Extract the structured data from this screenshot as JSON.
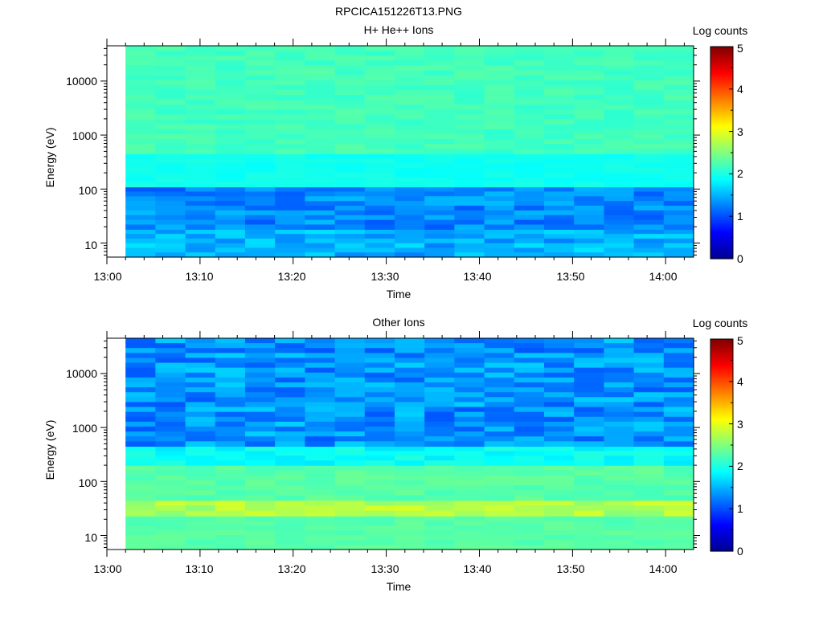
{
  "figure_title": "RPCICA151226T13.PNG",
  "colormap": [
    "#00008f",
    "#0000ff",
    "#007fff",
    "#00ffff",
    "#7fff7f",
    "#ffff00",
    "#ff7f00",
    "#ff0000",
    "#800000"
  ],
  "chart_data": [
    {
      "type": "heatmap",
      "title": "H+ He++ Ions",
      "xlabel": "Time",
      "ylabel": "Energy (eV)",
      "colorbar_label": "Log counts",
      "colorbar_range": [
        0,
        5
      ],
      "colorbar_ticks": [
        "0",
        "1",
        "2",
        "3",
        "4",
        "5"
      ],
      "x_range": [
        "13:00",
        "14:03"
      ],
      "x_ticks": [
        "13:00",
        "13:10",
        "13:20",
        "13:30",
        "13:40",
        "13:50",
        "14:00"
      ],
      "y_scale": "log",
      "y_range": [
        5.5,
        45000
      ],
      "y_ticks": [
        "10",
        "100",
        "1000",
        "10000"
      ],
      "data_time_range": [
        "13:02",
        "14:03"
      ],
      "time_bins": 19,
      "bands": [
        {
          "energy_range_eV": [
            5.5,
            18
          ],
          "log_counts": 1.5,
          "variation": 0.25
        },
        {
          "energy_range_eV": [
            18,
            110
          ],
          "log_counts": 1.3,
          "variation": 0.25
        },
        {
          "energy_range_eV": [
            110,
            450
          ],
          "log_counts": 1.95,
          "variation": 0.06
        },
        {
          "energy_range_eV": [
            450,
            45000
          ],
          "log_counts": 2.2,
          "variation": 0.1
        }
      ]
    },
    {
      "type": "heatmap",
      "title": "Other Ions",
      "xlabel": "Time",
      "ylabel": "Energy (eV)",
      "colorbar_label": "Log counts",
      "colorbar_range": [
        0,
        5
      ],
      "colorbar_ticks": [
        "0",
        "1",
        "2",
        "3",
        "4",
        "5"
      ],
      "x_range": [
        "13:00",
        "14:03"
      ],
      "x_ticks": [
        "13:00",
        "13:10",
        "13:20",
        "13:30",
        "13:40",
        "13:50",
        "14:00"
      ],
      "y_scale": "log",
      "y_range": [
        5.5,
        45000
      ],
      "y_ticks": [
        "10",
        "100",
        "1000",
        "10000"
      ],
      "data_time_range": [
        "13:02",
        "14:03"
      ],
      "time_bins": 19,
      "bands": [
        {
          "energy_range_eV": [
            5.5,
            23
          ],
          "log_counts": 2.3,
          "variation": 0.08
        },
        {
          "energy_range_eV": [
            23,
            45
          ],
          "log_counts": 2.75,
          "variation": 0.2
        },
        {
          "energy_range_eV": [
            45,
            200
          ],
          "log_counts": 2.3,
          "variation": 0.1
        },
        {
          "energy_range_eV": [
            200,
            450
          ],
          "log_counts": 1.9,
          "variation": 0.15
        },
        {
          "energy_range_eV": [
            450,
            45000
          ],
          "log_counts": 1.35,
          "variation": 0.3
        }
      ]
    }
  ]
}
